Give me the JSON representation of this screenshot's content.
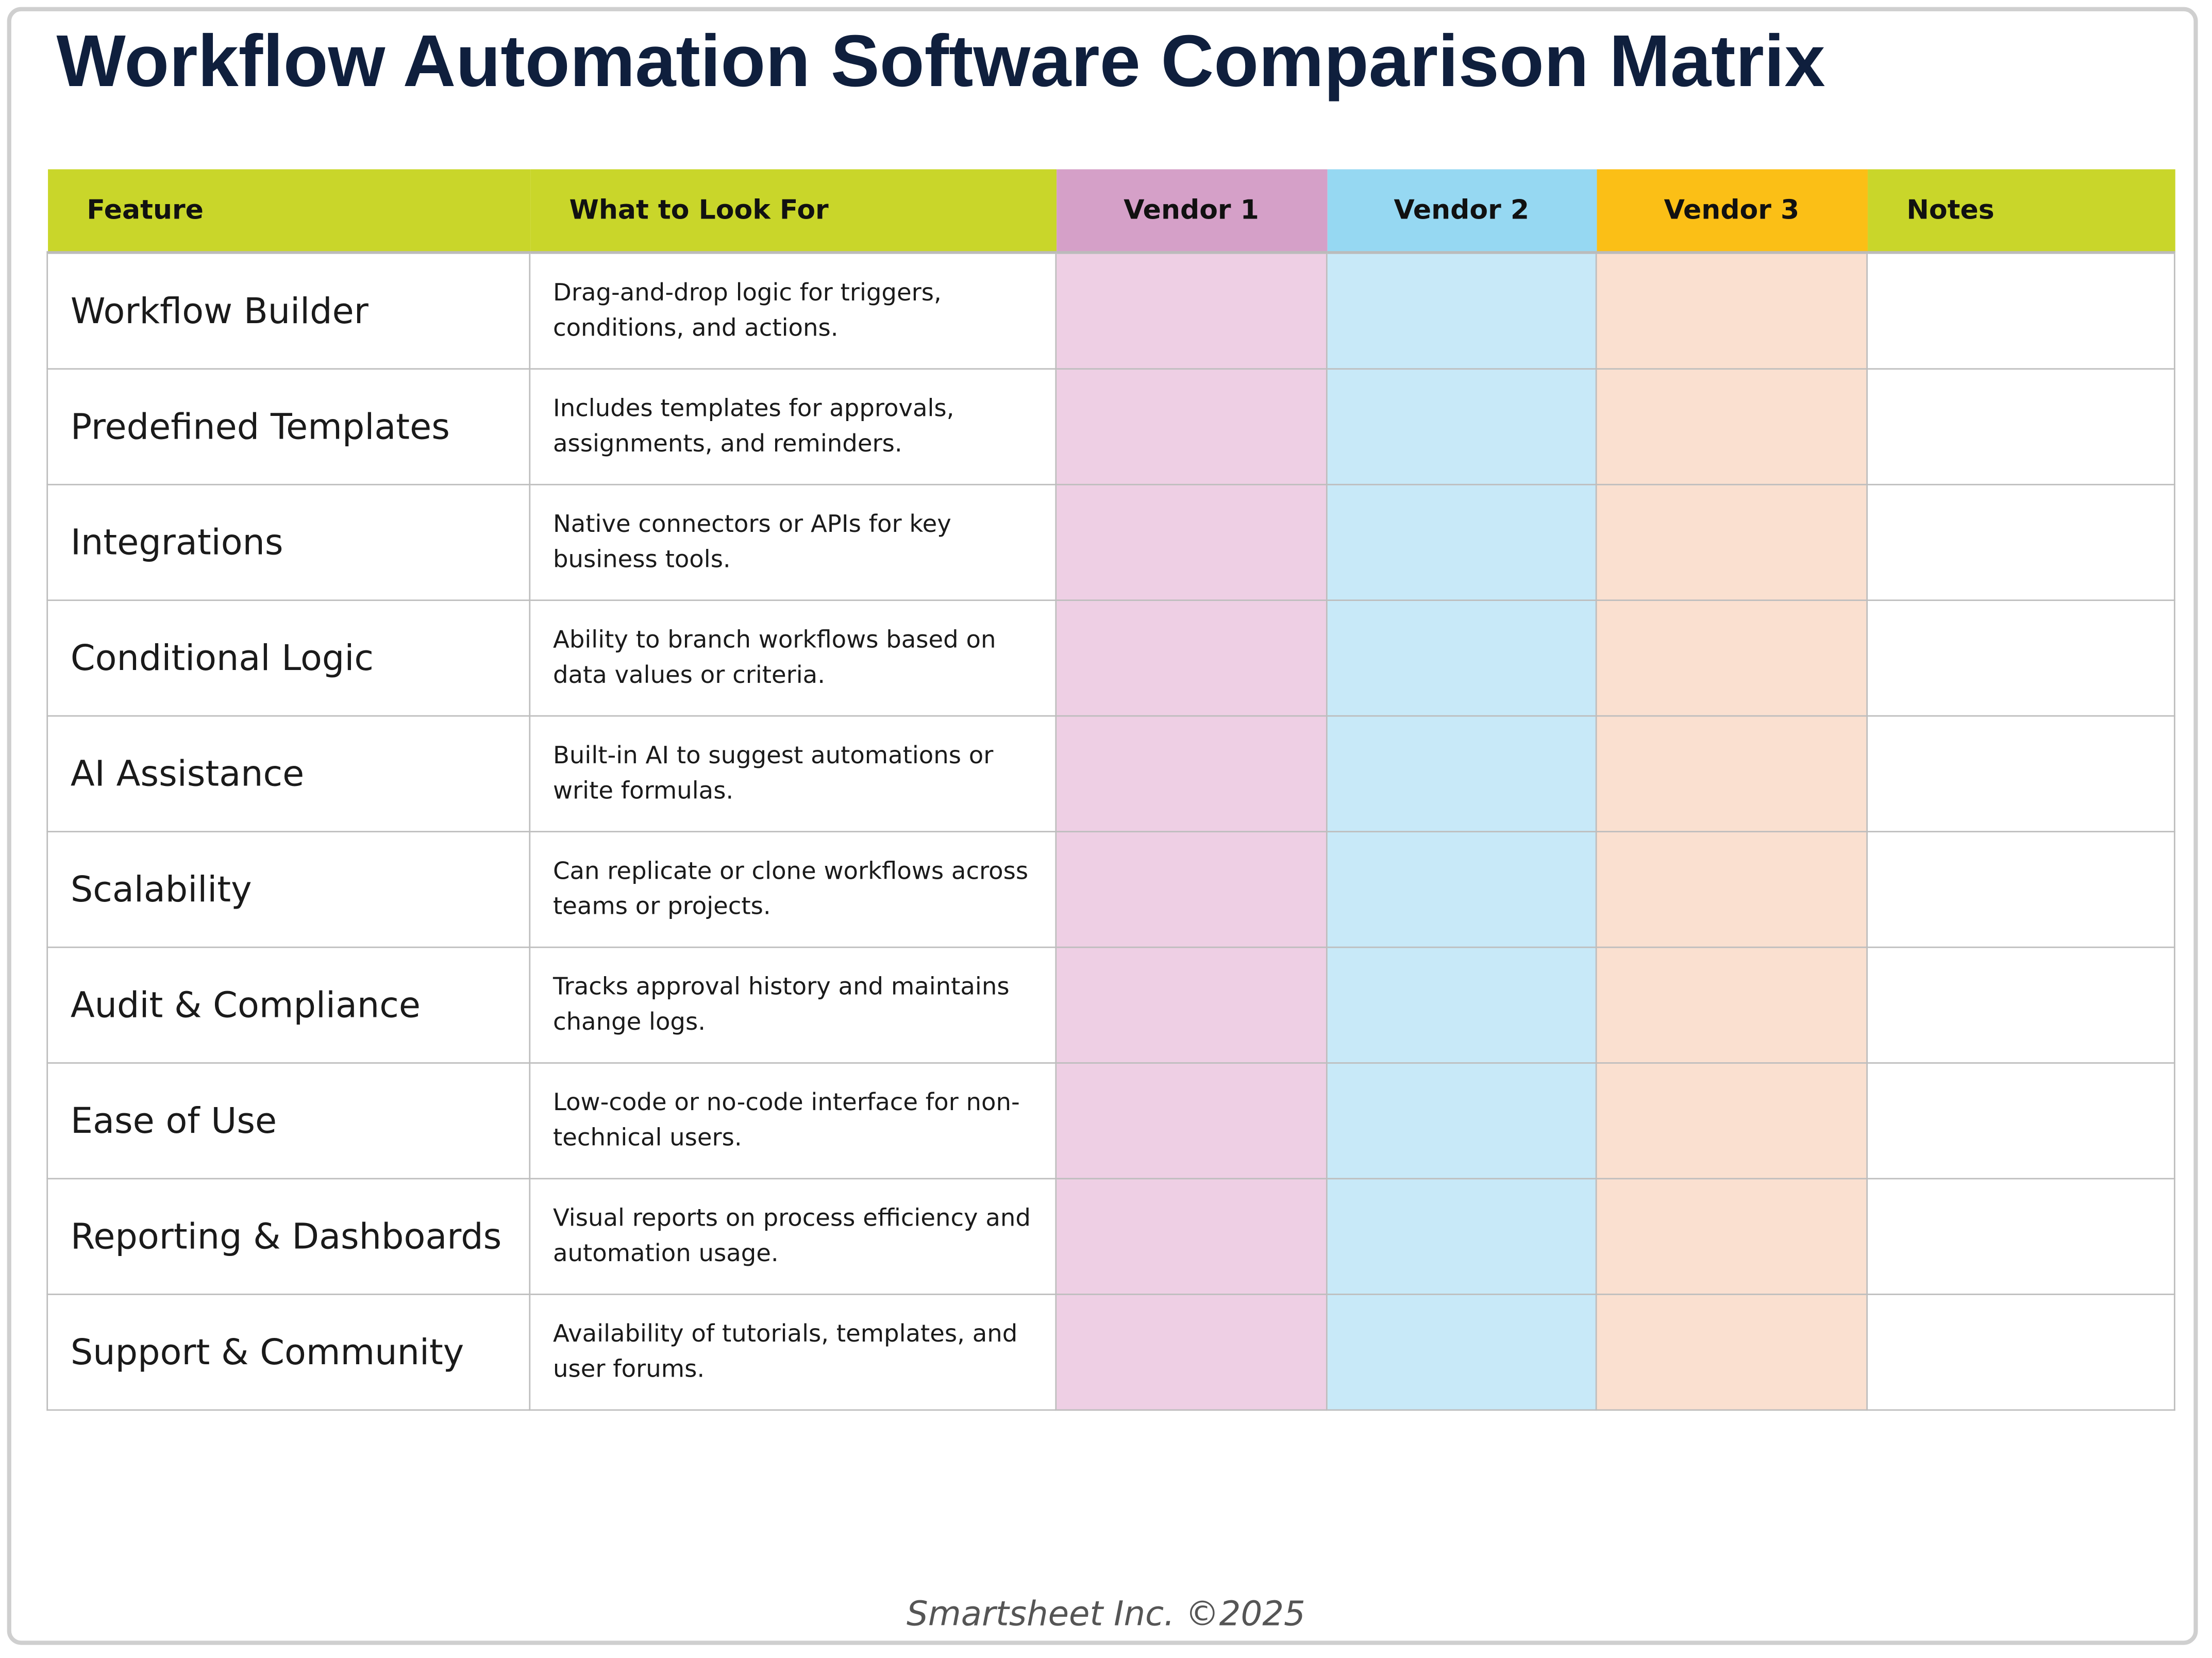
{
  "header": {
    "title": "Workflow Automation Software Comparison Matrix"
  },
  "table": {
    "columns": [
      "Feature",
      "What to Look For",
      "Vendor 1",
      "Vendor 2",
      "Vendor 3",
      "Notes"
    ],
    "rows": [
      [
        "Workflow Builder",
        "Drag-and-drop logic for triggers, conditions, and actions."
      ],
      [
        "Predefined Templates",
        "Includes templates for approvals, assignments, and reminders."
      ],
      [
        "Integrations",
        "Native connectors or APIs for key business tools."
      ],
      [
        "Conditional Logic",
        "Ability to branch workflows based on data values or criteria."
      ],
      [
        "AI Assistance",
        "Built-in AI to suggest automations or write formulas."
      ],
      [
        "Scalability",
        "Can replicate or clone workflows across teams or projects."
      ],
      [
        "Audit & Compliance",
        "Tracks approval history and maintains change logs."
      ],
      [
        "Ease of Use",
        "Low-code or no-code interface for non-technical users."
      ],
      [
        "Reporting & Dashboards",
        "Visual reports on process efficiency and automation usage."
      ],
      [
        "Support & Community",
        "Availability of tutorials, templates, and user forums."
      ]
    ]
  },
  "footer": {
    "copyright": "Smartsheet Inc. ©2025"
  }
}
